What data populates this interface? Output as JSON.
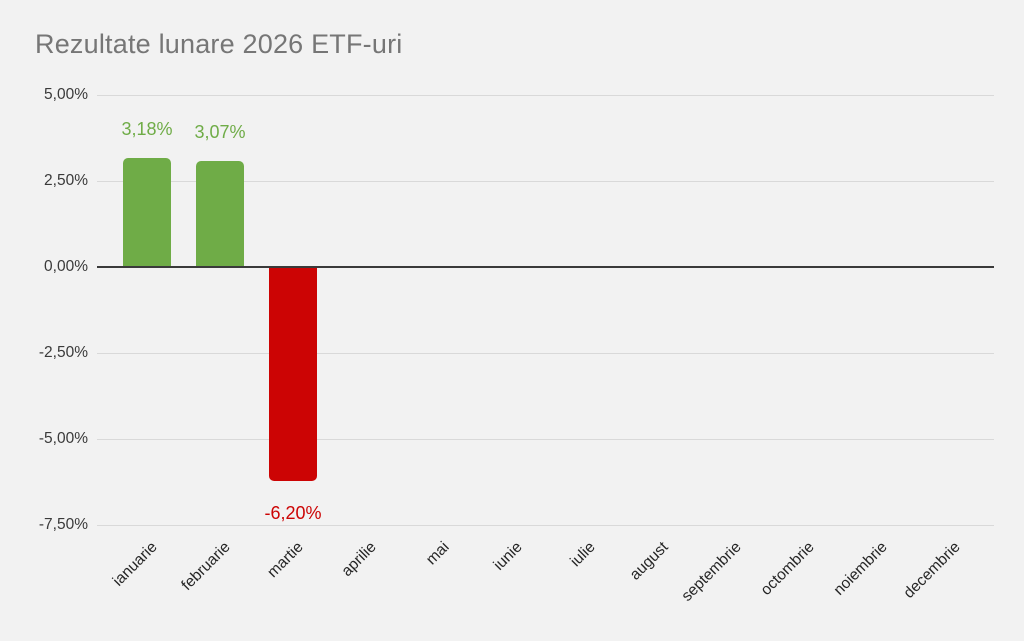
{
  "chart_data": {
    "type": "bar",
    "title": "Rezultate lunare 2026 ETF-uri",
    "categories": [
      "ianuarie",
      "februarie",
      "martie",
      "aprilie",
      "mai",
      "iunie",
      "iulie",
      "august",
      "septembrie",
      "octombrie",
      "noiembrie",
      "decembrie"
    ],
    "values": [
      3.18,
      3.07,
      -6.2,
      null,
      null,
      null,
      null,
      null,
      null,
      null,
      null,
      null
    ],
    "value_labels": [
      "3,18%",
      "3,07%",
      "-6,20%",
      null,
      null,
      null,
      null,
      null,
      null,
      null,
      null,
      null
    ],
    "y_ticks": [
      {
        "value": 5,
        "label": "5,00%"
      },
      {
        "value": 2.5,
        "label": "2,50%"
      },
      {
        "value": 0,
        "label": "0,00%"
      },
      {
        "value": -2.5,
        "label": "-2,50%"
      },
      {
        "value": -5,
        "label": "-5,00%"
      },
      {
        "value": -7.5,
        "label": "-7,50%"
      }
    ],
    "ylim": [
      -7.5,
      5
    ],
    "xlabel": "",
    "ylabel": "",
    "grid": true,
    "legend": null,
    "colors": {
      "positive": "#6FAC47",
      "negative": "#CC0404",
      "grid": "#D9D9D9",
      "axis": "#3A3A3A",
      "title": "#767676",
      "tick_text": "#3A3A3A",
      "category_text": "#262626",
      "background": "#F2F2F2"
    }
  }
}
